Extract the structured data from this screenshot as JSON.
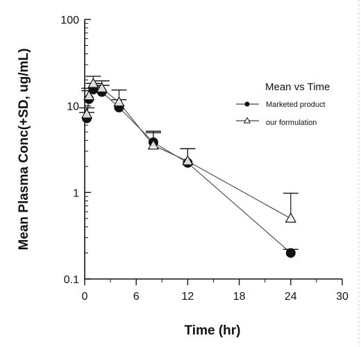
{
  "chart_data": {
    "type": "scatter",
    "xlabel": "Time (hr)",
    "ylabel": "Mean Plasma Conc(+SD, ug/mL)",
    "xlim": [
      0,
      30
    ],
    "ylim": [
      0.1,
      100
    ],
    "yscale": "log",
    "x_ticks": [
      "0",
      "6",
      "12",
      "18",
      "24",
      "30"
    ],
    "y_ticks": [
      "0.1",
      "1",
      "10",
      "100"
    ],
    "legend": {
      "title": "Mean vs Time",
      "position": "right",
      "entries": [
        "Marketed product",
        "our formulation"
      ]
    },
    "series": [
      {
        "name": "Marketed product",
        "marker": "filled-circle",
        "color": "#111111",
        "x": [
          0.25,
          0.5,
          1,
          2,
          4,
          8,
          12,
          24
        ],
        "y": [
          7.2,
          12,
          15.5,
          14.5,
          9.6,
          3.8,
          2.2,
          0.2
        ],
        "sd": [
          1.2,
          3,
          2.7,
          2.8,
          2.2,
          1.3,
          1.0,
          0.02
        ]
      },
      {
        "name": "our formulation",
        "marker": "open-triangle",
        "color": "#111111",
        "x": [
          0.25,
          0.5,
          1,
          2,
          4,
          8,
          12,
          24
        ],
        "y": [
          8,
          13,
          18,
          16,
          11,
          3.5,
          2.3,
          0.5
        ],
        "sd": [
          1.5,
          3,
          4,
          3.5,
          4.3,
          1.4,
          0.9,
          0.48
        ]
      }
    ]
  }
}
